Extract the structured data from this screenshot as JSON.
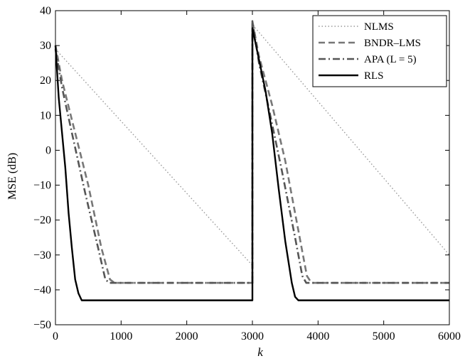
{
  "chart_data": {
    "type": "line",
    "xlabel": "k",
    "ylabel": "MSE (dB)",
    "xlim": [
      0,
      6000
    ],
    "ylim": [
      -50,
      40
    ],
    "xticks": [
      "0",
      "1000",
      "2000",
      "3000",
      "4000",
      "5000",
      "6000"
    ],
    "yticks": [
      "−50",
      "−40",
      "−30",
      "−20",
      "−10",
      "0",
      "10",
      "20",
      "30",
      "40"
    ],
    "grid": false,
    "legend_position": "top-right",
    "series": [
      {
        "name": "NLMS",
        "style": "dotted",
        "color": "#999999",
        "points": [
          [
            0,
            29
          ],
          [
            3000,
            -33
          ],
          [
            3000,
            36
          ],
          [
            6000,
            -30
          ]
        ]
      },
      {
        "name": "BNDR–LMS",
        "style": "dashed",
        "color": "#777777",
        "points": [
          [
            0,
            30
          ],
          [
            100,
            20
          ],
          [
            300,
            5
          ],
          [
            500,
            -10
          ],
          [
            700,
            -28
          ],
          [
            830,
            -37
          ],
          [
            900,
            -38
          ],
          [
            3000,
            -38
          ],
          [
            3000,
            37
          ],
          [
            3100,
            27
          ],
          [
            3300,
            13
          ],
          [
            3500,
            -3
          ],
          [
            3700,
            -23
          ],
          [
            3830,
            -36
          ],
          [
            3900,
            -38
          ],
          [
            6000,
            -38
          ]
        ]
      },
      {
        "name": "APA (L = 5)",
        "style": "dashdot",
        "color": "#555555",
        "points": [
          [
            0,
            29
          ],
          [
            100,
            18
          ],
          [
            250,
            5
          ],
          [
            450,
            -12
          ],
          [
            650,
            -28
          ],
          [
            760,
            -37
          ],
          [
            820,
            -38
          ],
          [
            3000,
            -38
          ],
          [
            3000,
            37
          ],
          [
            3100,
            25
          ],
          [
            3250,
            12
          ],
          [
            3450,
            -6
          ],
          [
            3650,
            -25
          ],
          [
            3760,
            -36
          ],
          [
            3820,
            -38
          ],
          [
            6000,
            -38
          ]
        ]
      },
      {
        "name": "RLS",
        "style": "solid",
        "color": "#000000",
        "points": [
          [
            0,
            30
          ],
          [
            50,
            15
          ],
          [
            100,
            5
          ],
          [
            150,
            -5
          ],
          [
            200,
            -18
          ],
          [
            250,
            -28
          ],
          [
            300,
            -37
          ],
          [
            350,
            -41
          ],
          [
            400,
            -43
          ],
          [
            3000,
            -43
          ],
          [
            3000,
            35
          ],
          [
            3100,
            26
          ],
          [
            3200,
            17
          ],
          [
            3300,
            5
          ],
          [
            3400,
            -11
          ],
          [
            3500,
            -26
          ],
          [
            3600,
            -38
          ],
          [
            3650,
            -42
          ],
          [
            3700,
            -43
          ],
          [
            6000,
            -43
          ]
        ]
      }
    ]
  }
}
